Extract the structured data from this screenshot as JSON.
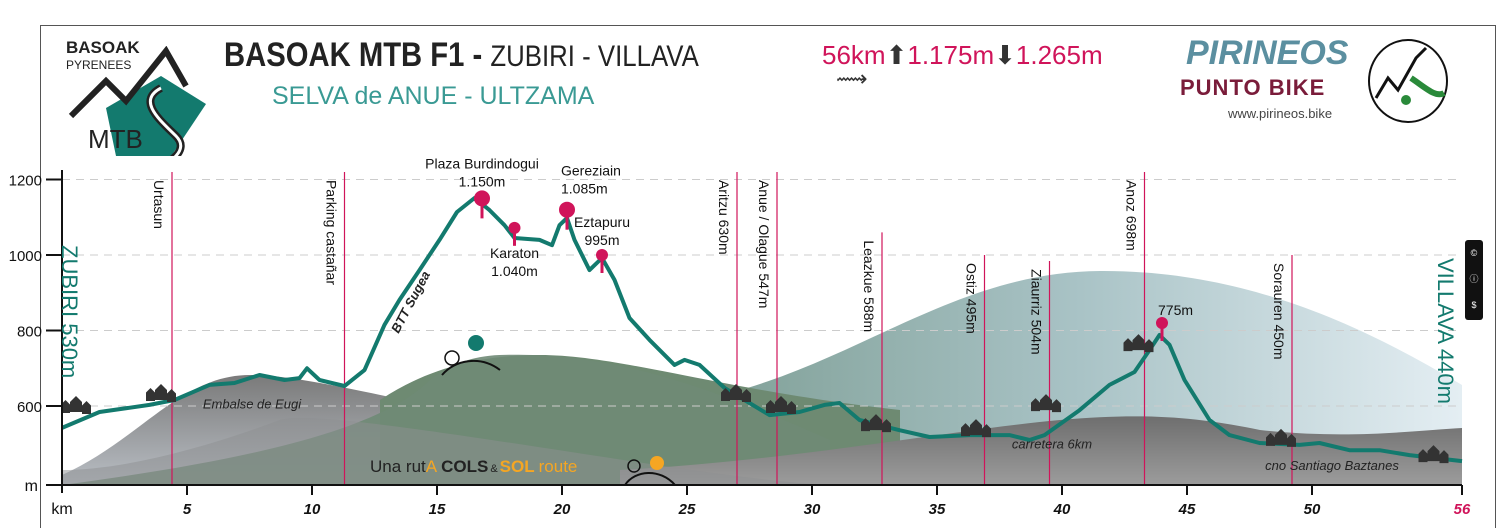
{
  "header": {
    "title_bold": "BASOAK MTB F1 -",
    "title_route": "ZUBIRI - VILLAVA",
    "subtitle": "SELVA de ANUE - ULTZAMA",
    "distance": "56km",
    "ascent": "1.175m",
    "descent": "1.265m",
    "logo_left": {
      "line1": "BASOAK",
      "line2": "PYRENEES",
      "line3": "MTB"
    },
    "brand": {
      "name": "PIRINEOS",
      "tagline": "PUNTO BIKE",
      "url": "www.pirineos.bike"
    },
    "license_icon": "cc-by-nc-icon"
  },
  "colors": {
    "profile": "#137a6e",
    "accent": "#d0145a",
    "teal_text": "#3a9a94",
    "cols_orange": "#f5a623"
  },
  "chart_data": {
    "type": "area",
    "xlabel": "km",
    "ylabel": "m",
    "xlim": [
      0,
      56
    ],
    "ylim": [
      400,
      1280
    ],
    "xticks": [
      "5",
      "10",
      "15",
      "20",
      "25",
      "30",
      "35",
      "40",
      "45",
      "50",
      "56"
    ],
    "xtick_values": [
      5,
      10,
      15,
      20,
      25,
      30,
      35,
      40,
      45,
      50,
      56
    ],
    "yticks": [
      600,
      800,
      1000,
      1200
    ],
    "grid": true,
    "start_label": "ZUBIRI 530m",
    "end_label": "VILLAVA 440m",
    "profile": {
      "x": [
        0,
        1.5,
        3.5,
        4.5,
        5.9,
        6.9,
        7.9,
        8.9,
        9.5,
        9.8,
        10.3,
        11.3,
        12.1,
        12.9,
        13.5,
        14.3,
        15.1,
        15.8,
        16.5,
        17.1,
        17.7,
        18.1,
        19.1,
        19.6,
        19.9,
        20.2,
        20.5,
        21.1,
        21.6,
        22.1,
        22.7,
        23.5,
        24.5,
        24.9,
        25.5,
        26.5,
        27.3,
        28.3,
        29.5,
        30.5,
        31.1,
        31.9,
        33.5,
        34.7,
        36.3,
        37.9,
        38.7,
        39.3,
        40.7,
        41.9,
        42.9,
        43.5,
        43.9,
        44.3,
        44.9,
        45.9,
        46.7,
        47.9,
        49.5,
        50.3,
        51.5,
        52.7,
        53.9,
        56
      ],
      "y": [
        542,
        584,
        603,
        616,
        656,
        661,
        682,
        669,
        674,
        700,
        669,
        653,
        695,
        815,
        881,
        960,
        1040,
        1114,
        1151,
        1119,
        1079,
        1045,
        1040,
        1026,
        1079,
        1098,
        1040,
        960,
        992,
        934,
        833,
        775,
        709,
        722,
        709,
        648,
        616,
        576,
        584,
        603,
        608,
        563,
        536,
        518,
        523,
        523,
        510,
        523,
        589,
        656,
        690,
        748,
        788,
        762,
        669,
        563,
        523,
        502,
        497,
        502,
        483,
        483,
        470,
        454
      ]
    },
    "summits": [
      {
        "name": "Plaza Burdindogui",
        "elevation": "1.150m",
        "km": 16.8,
        "ele": 1150,
        "size": "large",
        "label_pos": "above"
      },
      {
        "name": "Karaton",
        "elevation": "1.040m",
        "km": 18.1,
        "ele": 1072,
        "size": "small",
        "label_pos": "below"
      },
      {
        "name": "Gereziain",
        "elevation": "1.085m",
        "km": 20.2,
        "ele": 1120,
        "size": "large",
        "label_pos": "above-right"
      },
      {
        "name": "Eztapuru",
        "elevation": "995m",
        "km": 21.6,
        "ele": 1000,
        "size": "small",
        "label_pos": "above"
      },
      {
        "name": "",
        "elevation": "775m",
        "km": 44,
        "ele": 820,
        "size": "small",
        "label_pos": "above-right"
      }
    ],
    "waypoints": [
      {
        "label": "Urtasun",
        "km": 4.4,
        "top": 1220
      },
      {
        "label": "Parking castañar",
        "km": 11.3,
        "top": 1220
      },
      {
        "label": "Aritzu 630m",
        "km": 27,
        "top": 1220
      },
      {
        "label": "Anue / Olague 547m",
        "km": 28.6,
        "top": 1220
      },
      {
        "label": "Leazkue 588m",
        "km": 32.8,
        "top": 1060
      },
      {
        "label": "Ostiz 495m",
        "km": 36.9,
        "top": 1000
      },
      {
        "label": "Ziaurriz 504m",
        "km": 39.5,
        "top": 984
      },
      {
        "label": "Anoz 698m",
        "km": 43.3,
        "top": 1220
      },
      {
        "label": "Sorauren 450m",
        "km": 49.2,
        "top": 1000
      }
    ],
    "villages_km": [
      0.6,
      4,
      27,
      28.8,
      32.6,
      36.6,
      39.4,
      43.1,
      48.8,
      54.9
    ],
    "annotations": [
      {
        "text": "Embalse de Eugi",
        "km": 7.6,
        "ele": 594
      },
      {
        "text": "BTT Sugea",
        "km": 14.1,
        "ele": 870,
        "rotated": true
      },
      {
        "text": "carretera 6km",
        "km": 39.6,
        "ele": 488
      },
      {
        "text": "cno Santiago Baztanes",
        "km": 50.8,
        "ele": 430
      }
    ],
    "tagline": {
      "part1": "Una rut",
      "part2": "A",
      "part3": "COLS",
      "part4": "&",
      "part5": "SOL",
      "part6": "route"
    }
  }
}
